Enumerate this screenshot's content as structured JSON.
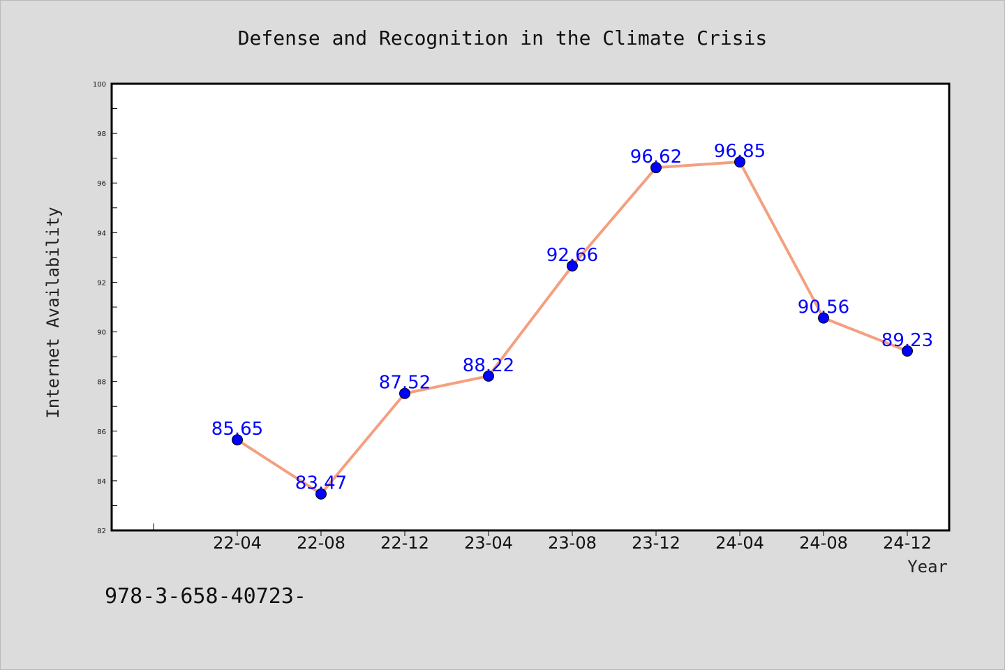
{
  "chart_data": {
    "type": "line",
    "title": "Defense and Recognition in the Climate Crisis",
    "xlabel": "Year",
    "ylabel": "Internet Availability",
    "categories": [
      "22-04",
      "22-08",
      "22-12",
      "23-04",
      "23-08",
      "23-12",
      "24-04",
      "24-08",
      "24-12"
    ],
    "values": [
      85.65,
      83.47,
      87.52,
      88.22,
      92.66,
      96.62,
      96.85,
      90.56,
      89.23
    ],
    "data_labels": [
      "85.65",
      "83.47",
      "87.52",
      "88.22",
      "92.66",
      "96.62",
      "96.85",
      "90.56",
      "89.23"
    ],
    "ylim": [
      82,
      100
    ],
    "yticks": [
      82,
      84,
      86,
      88,
      90,
      92,
      94,
      96,
      98,
      100
    ],
    "ytick_labels": [
      "82",
      "84",
      "86",
      "88",
      "90",
      "92",
      "94",
      "96",
      "98",
      "100"
    ],
    "grid": false,
    "legend": "none",
    "colors": {
      "line": "#f4a080",
      "marker": "#0000ff",
      "label": "#0000ff",
      "plot_bg": "#ffffff",
      "page_bg": "#dcdcdc"
    }
  },
  "footer": {
    "text": "978-3-658-40723-"
  }
}
